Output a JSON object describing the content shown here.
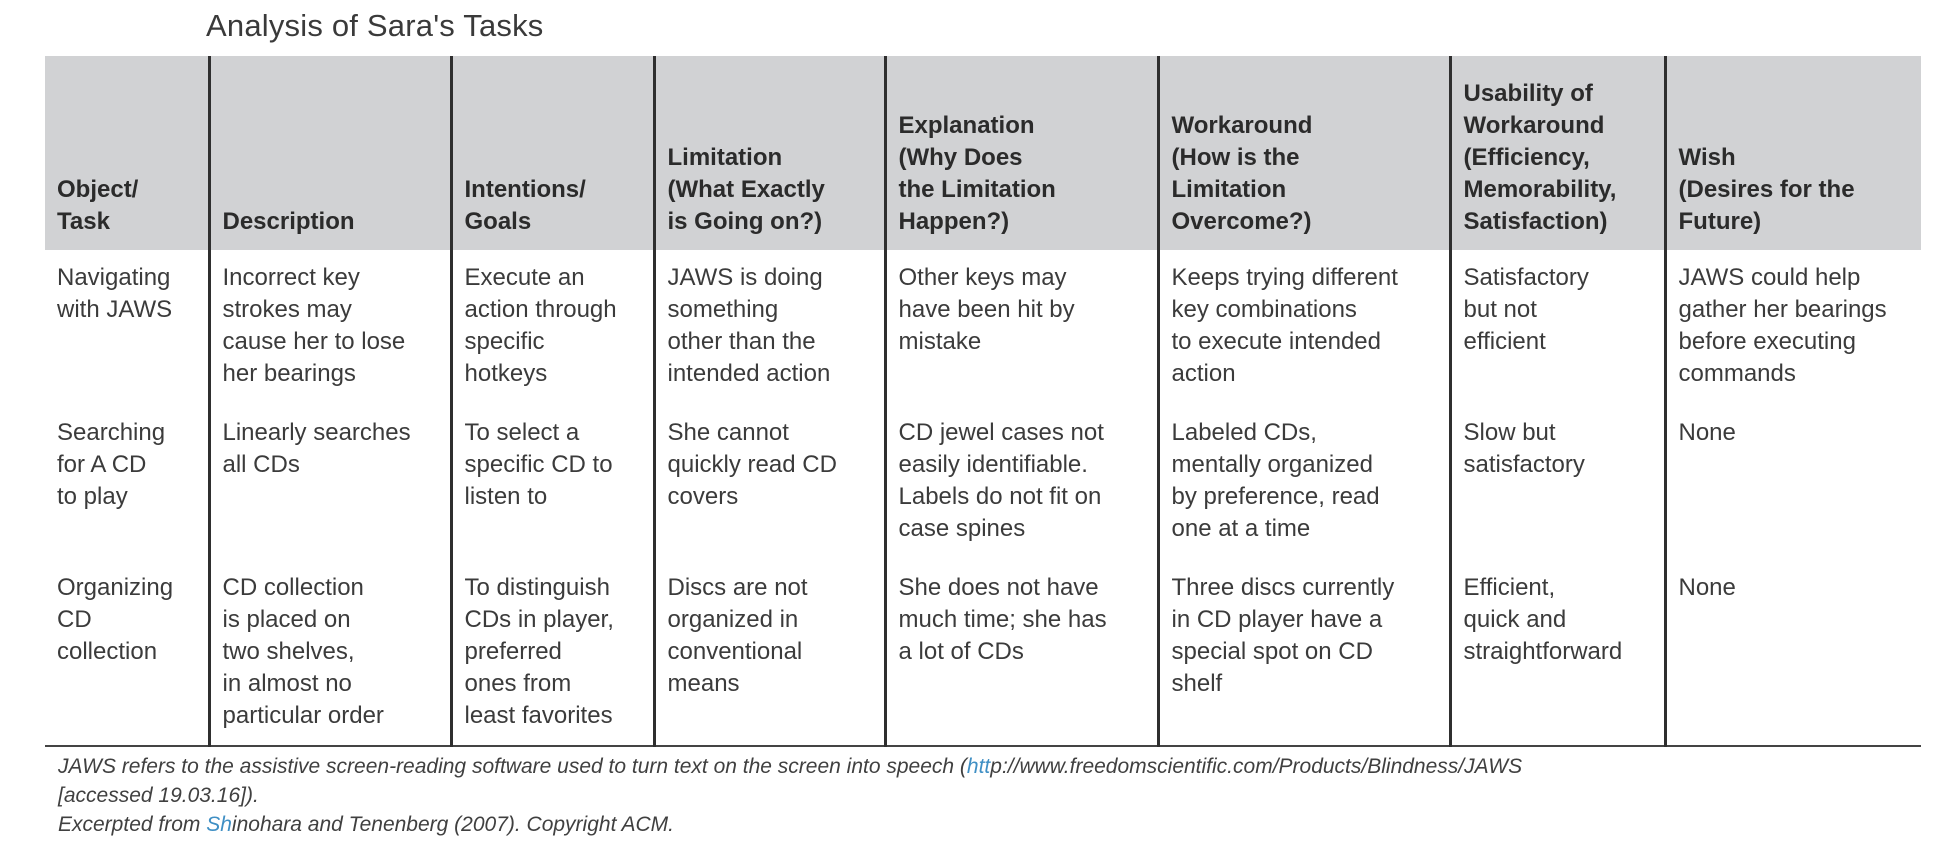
{
  "title": "Analysis of Sara's Tasks",
  "table": {
    "headers": [
      "Object/\nTask",
      "Description",
      "Intentions/\nGoals",
      "Limitation\n(What Exactly\nis Going on?)",
      "Explanation\n(Why Does\nthe Limitation\nHappen?)",
      "Workaround\n(How is the\nLimitation\nOvercome?)",
      "Usability of\nWorkaround\n(Efficiency,\nMemorability,\nSatisfaction)",
      "Wish\n(Desires for the\nFuture)"
    ],
    "rows": [
      [
        "Navigating\nwith JAWS",
        "Incorrect key\nstrokes may\ncause her to lose\nher bearings",
        "Execute an\naction through\nspecific\nhotkeys",
        "JAWS is doing\nsomething\nother than the\nintended action",
        "Other keys may\nhave been hit by\nmistake",
        "Keeps trying different\nkey combinations\nto execute intended\naction",
        "Satisfactory\nbut not\nefficient",
        "JAWS could help\ngather her bearings\nbefore executing\ncommands"
      ],
      [
        "Searching\nfor A CD\nto play",
        "Linearly searches\nall CDs",
        "To select a\nspecific CD to\nlisten to",
        "She cannot\nquickly read CD\ncovers",
        "CD jewel cases not\neasily identifiable.\nLabels do not fit on\ncase spines",
        "Labeled CDs,\nmentally organized\nby preference, read\none at a time",
        "Slow but\nsatisfactory",
        "None"
      ],
      [
        "Organizing\nCD\ncollection",
        "CD collection\nis placed on\ntwo shelves,\nin almost no\nparticular order",
        "To distinguish\nCDs in player,\npreferred\nones from\nleast favorites",
        "Discs are not\norganized in\nconventional\nmeans",
        "She does not have\nmuch time; she has\na lot of CDs",
        "Three discs currently\nin CD player have a\nspecial spot on CD\nshelf",
        "Efficient,\nquick and\nstraightforward",
        "None"
      ]
    ]
  },
  "notes": {
    "line1_before": "JAWS refers to the assistive screen-reading software used to turn text on the screen into speech (",
    "line1_link": "htt",
    "line1_after": "p://www.freedomscientific.com/Products/Blindness/JAWS",
    "line2": "[accessed 19.03.16]).",
    "line3_before": "Excerpted from ",
    "line3_link": "Sh",
    "line3_after": "inohara and Tenenberg (2007). Copyright ACM."
  },
  "colors": {
    "header_bg": "#d1d2d4",
    "text": "#3a3a3a",
    "rule": "#2f2f2f",
    "link_fragment": "#3f8fc4"
  }
}
